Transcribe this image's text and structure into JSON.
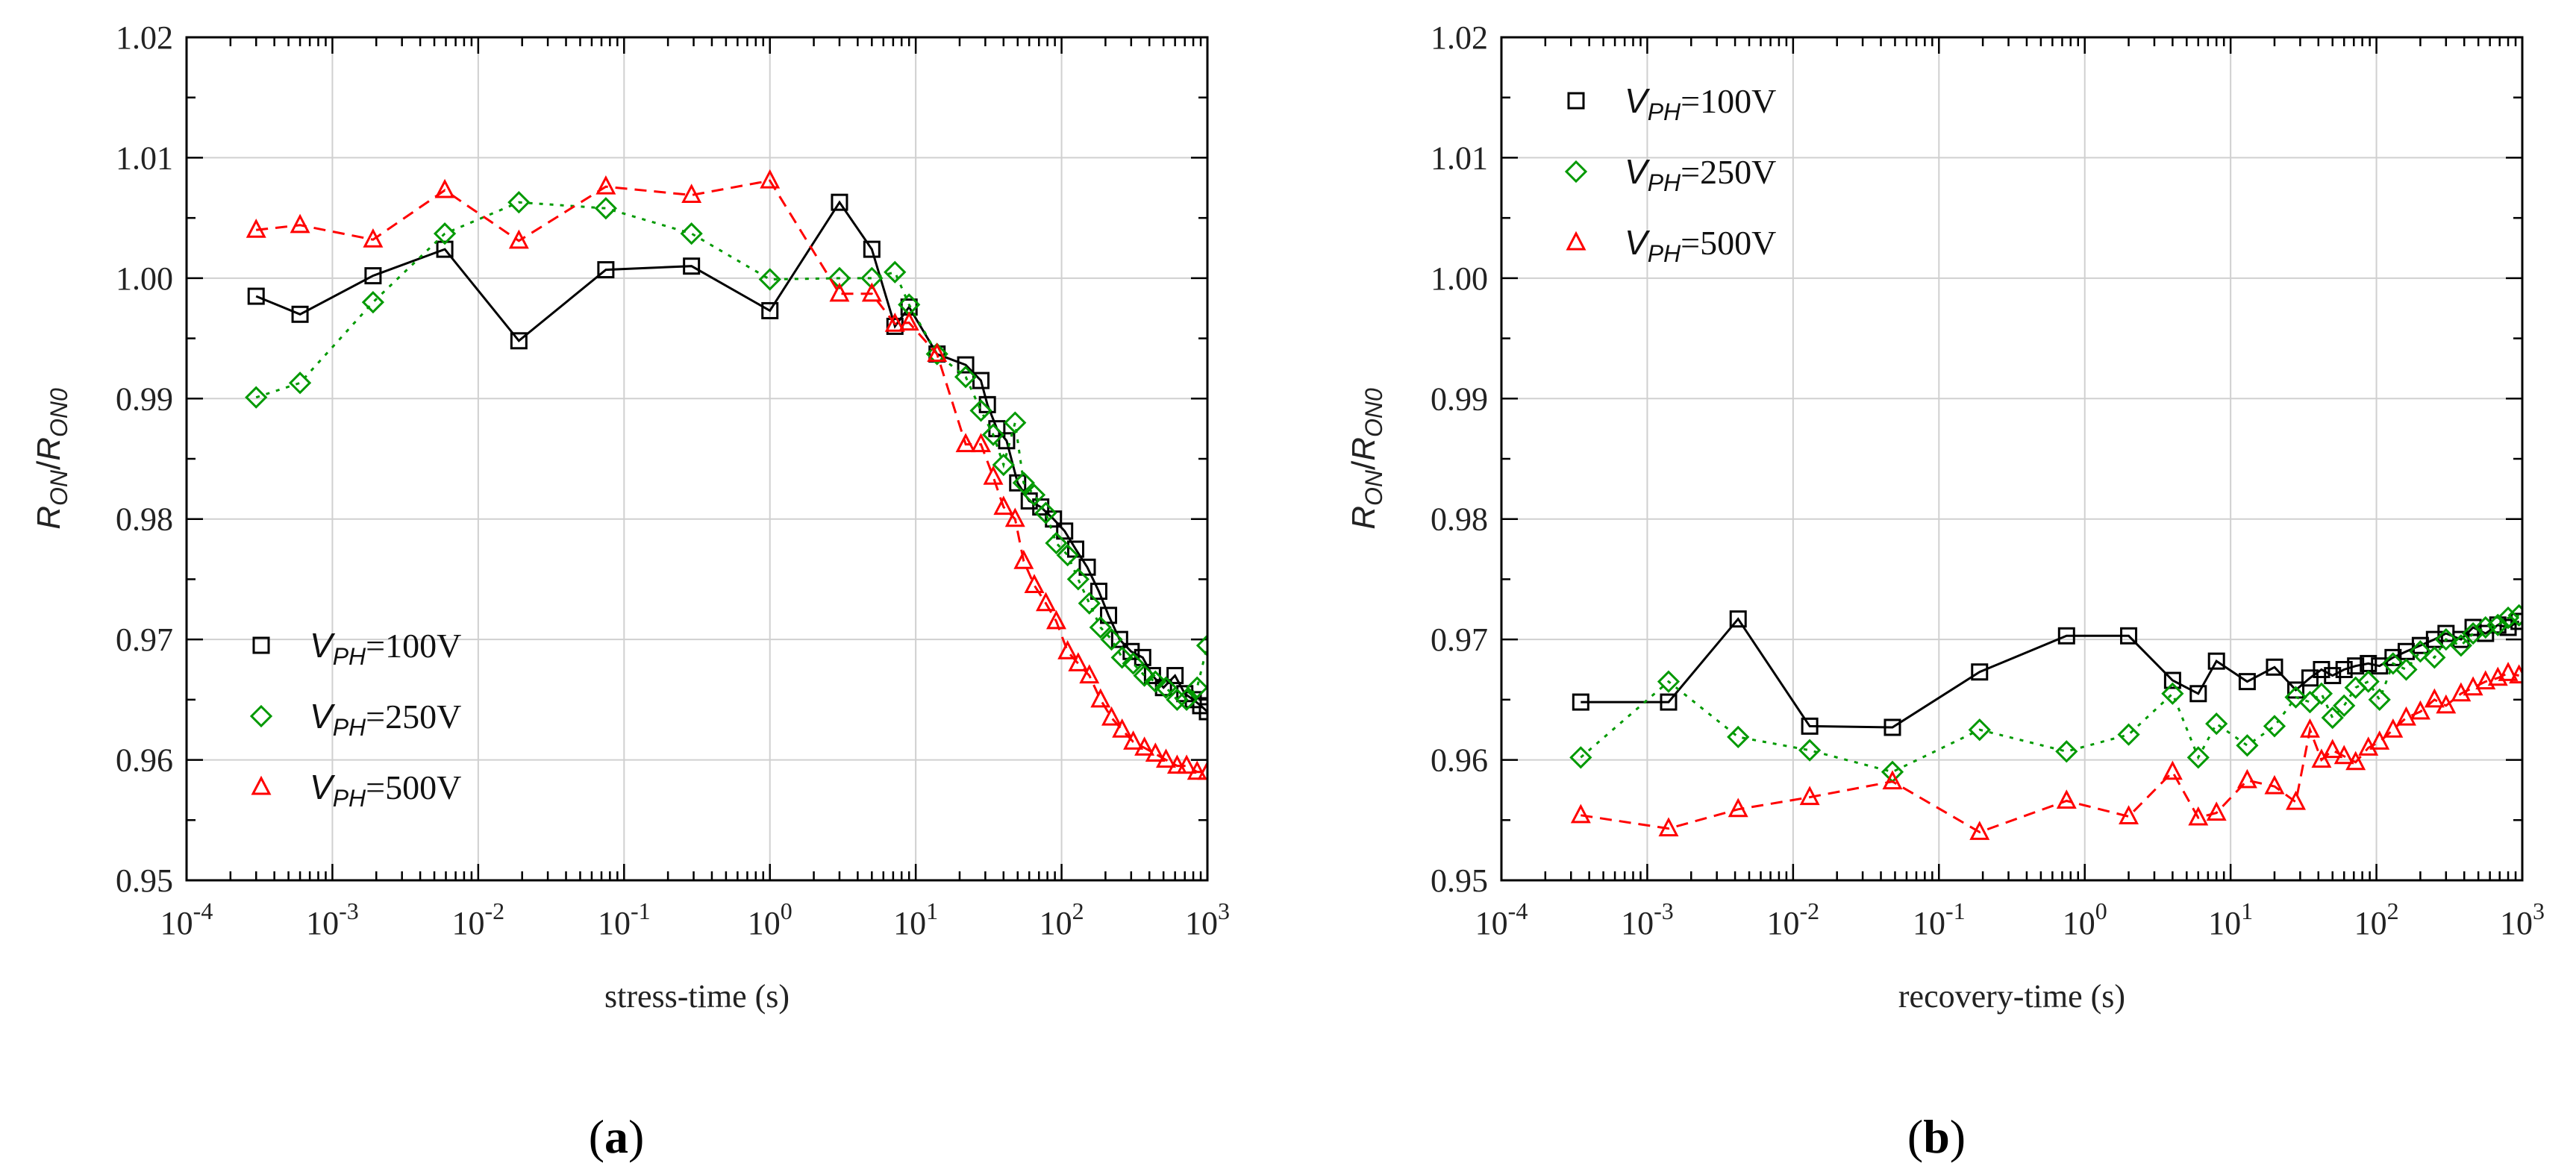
{
  "figure": {
    "panels": [
      "a",
      "b"
    ]
  },
  "chart_data": [
    {
      "panel_label": "(a)",
      "panel_letter": "a",
      "type": "scatter",
      "title": "",
      "xlabel": "stress-time (s)",
      "ylabel": "R_ON/R_ON0",
      "ylabel_parts": {
        "main": "R",
        "sub1": "ON",
        "slash": "/",
        "main2": "R",
        "sub2": "ON0"
      },
      "xscale": "log",
      "xlim": [
        0.0001,
        1000
      ],
      "ylim": [
        0.95,
        1.02
      ],
      "grid": true,
      "legend_position": "bottom-left",
      "x_tick_labels": [
        {
          "base": "10",
          "exp": "-4"
        },
        {
          "base": "10",
          "exp": "-3"
        },
        {
          "base": "10",
          "exp": "-2"
        },
        {
          "base": "10",
          "exp": "-1"
        },
        {
          "base": "10",
          "exp": "0"
        },
        {
          "base": "10",
          "exp": "1"
        },
        {
          "base": "10",
          "exp": "2"
        },
        {
          "base": "10",
          "exp": "3"
        }
      ],
      "y_tick_labels": [
        "0.95",
        "0.96",
        "0.97",
        "0.98",
        "0.99",
        "1.00",
        "1.01",
        "1.02"
      ],
      "series": [
        {
          "name": "VPH=100V",
          "legend": {
            "prefix": "V",
            "sub": "PH",
            "suffix": "=100V"
          },
          "marker": "square",
          "line": "solid",
          "color": "#000000",
          "x": [
            0.0003,
            0.0006,
            0.0019,
            0.0059,
            0.019,
            0.075,
            0.29,
            1.0,
            3.0,
            5.0,
            7.2,
            9.0,
            14,
            22,
            28,
            31,
            36,
            42,
            50,
            60,
            72,
            88,
            105,
            125,
            150,
            180,
            210,
            250,
            300,
            360,
            420,
            500,
            600,
            700,
            800,
            900,
            1000
          ],
          "y": [
            0.9985,
            0.997,
            1.0002,
            1.0024,
            0.9948,
            1.0007,
            1.001,
            0.9973,
            1.0063,
            1.0024,
            0.996,
            0.9976,
            0.9937,
            0.9928,
            0.9915,
            0.9895,
            0.9875,
            0.9865,
            0.983,
            0.9815,
            0.981,
            0.98,
            0.979,
            0.9775,
            0.976,
            0.974,
            0.972,
            0.97,
            0.969,
            0.9685,
            0.967,
            0.966,
            0.967,
            0.9655,
            0.965,
            0.9645,
            0.964
          ]
        },
        {
          "name": "VPH=250V",
          "legend": {
            "prefix": "V",
            "sub": "PH",
            "suffix": "=250V"
          },
          "marker": "diamond",
          "line": "dotted",
          "color": "#009900",
          "x": [
            0.0003,
            0.0006,
            0.0019,
            0.0059,
            0.019,
            0.075,
            0.29,
            1.0,
            3.0,
            5.0,
            7.2,
            9.0,
            14,
            22,
            28,
            34,
            40,
            48,
            55,
            65,
            78,
            92,
            110,
            130,
            155,
            185,
            220,
            260,
            310,
            370,
            440,
            520,
            620,
            720,
            850,
            1000
          ],
          "y": [
            0.9901,
            0.9913,
            0.998,
            1.0037,
            1.0063,
            1.0058,
            1.0037,
            0.9999,
            1.0,
            1.0,
            1.0005,
            0.9978,
            0.9937,
            0.9918,
            0.989,
            0.987,
            0.9845,
            0.988,
            0.983,
            0.982,
            0.9805,
            0.978,
            0.977,
            0.975,
            0.973,
            0.971,
            0.97,
            0.9685,
            0.968,
            0.967,
            0.9665,
            0.966,
            0.965,
            0.965,
            0.966,
            0.9695
          ]
        },
        {
          "name": "VPH=500V",
          "legend": {
            "prefix": "V",
            "sub": "PH",
            "suffix": "=500V"
          },
          "marker": "triangle",
          "line": "dashed",
          "color": "#ff0000",
          "x": [
            0.0003,
            0.0006,
            0.0019,
            0.0059,
            0.019,
            0.075,
            0.29,
            1.0,
            3.0,
            5.0,
            7.2,
            9.0,
            14,
            22,
            28,
            34,
            40,
            48,
            55,
            65,
            78,
            92,
            110,
            130,
            155,
            185,
            220,
            260,
            310,
            370,
            440,
            520,
            620,
            720,
            850,
            1000
          ],
          "y": [
            1.004,
            1.0044,
            1.0032,
            1.0073,
            1.0031,
            1.0076,
            1.0069,
            1.0081,
            0.9987,
            0.9987,
            0.9962,
            0.9963,
            0.9937,
            0.9862,
            0.9862,
            0.9835,
            0.981,
            0.98,
            0.9765,
            0.9745,
            0.973,
            0.9715,
            0.969,
            0.968,
            0.967,
            0.965,
            0.9635,
            0.9625,
            0.9615,
            0.961,
            0.9605,
            0.96,
            0.9595,
            0.9595,
            0.959,
            0.959
          ]
        }
      ]
    },
    {
      "panel_label": "(b)",
      "panel_letter": "b",
      "type": "scatter",
      "title": "",
      "xlabel": "recovery-time (s)",
      "ylabel": "R_ON/R_ON0",
      "ylabel_parts": {
        "main": "R",
        "sub1": "ON",
        "slash": "/",
        "main2": "R",
        "sub2": "ON0"
      },
      "xscale": "log",
      "xlim": [
        0.0001,
        1000
      ],
      "ylim": [
        0.95,
        1.02
      ],
      "grid": true,
      "legend_position": "top-left",
      "x_tick_labels": [
        {
          "base": "10",
          "exp": "-4"
        },
        {
          "base": "10",
          "exp": "-3"
        },
        {
          "base": "10",
          "exp": "-2"
        },
        {
          "base": "10",
          "exp": "-1"
        },
        {
          "base": "10",
          "exp": "0"
        },
        {
          "base": "10",
          "exp": "1"
        },
        {
          "base": "10",
          "exp": "2"
        },
        {
          "base": "10",
          "exp": "3"
        }
      ],
      "y_tick_labels": [
        "0.95",
        "0.96",
        "0.97",
        "0.98",
        "0.99",
        "1.00",
        "1.01",
        "1.02"
      ],
      "series": [
        {
          "name": "VPH=100V",
          "legend": {
            "prefix": "V",
            "sub": "PH",
            "suffix": "=100V"
          },
          "marker": "square",
          "line": "solid",
          "color": "#000000",
          "x": [
            0.00035,
            0.0014,
            0.0042,
            0.013,
            0.048,
            0.19,
            0.75,
            2.0,
            4.0,
            6.0,
            8.0,
            13,
            20,
            28,
            35,
            42,
            50,
            60,
            72,
            88,
            105,
            130,
            160,
            200,
            250,
            300,
            380,
            460,
            560,
            680,
            800,
            950
          ],
          "y": [
            0.9648,
            0.9648,
            0.9717,
            0.9628,
            0.9627,
            0.9673,
            0.9703,
            0.9703,
            0.9666,
            0.9655,
            0.9682,
            0.9665,
            0.9677,
            0.9658,
            0.9668,
            0.9675,
            0.967,
            0.9675,
            0.9678,
            0.968,
            0.9678,
            0.9685,
            0.969,
            0.9695,
            0.97,
            0.9705,
            0.97,
            0.971,
            0.9705,
            0.9712,
            0.971,
            0.9715
          ]
        },
        {
          "name": "VPH=250V",
          "legend": {
            "prefix": "V",
            "sub": "PH",
            "suffix": "=250V"
          },
          "marker": "diamond",
          "line": "dotted",
          "color": "#009900",
          "x": [
            0.00035,
            0.0014,
            0.0042,
            0.013,
            0.048,
            0.19,
            0.75,
            2.0,
            4.0,
            6.0,
            8.0,
            13,
            20,
            28,
            35,
            42,
            50,
            60,
            72,
            88,
            105,
            130,
            160,
            200,
            250,
            300,
            380,
            460,
            560,
            680,
            800,
            950
          ],
          "y": [
            0.9602,
            0.9665,
            0.9619,
            0.9608,
            0.959,
            0.9625,
            0.9607,
            0.9621,
            0.9655,
            0.9602,
            0.963,
            0.9612,
            0.9628,
            0.9652,
            0.9648,
            0.9655,
            0.9635,
            0.9645,
            0.966,
            0.9665,
            0.965,
            0.968,
            0.9675,
            0.969,
            0.9685,
            0.97,
            0.9695,
            0.9705,
            0.971,
            0.9712,
            0.9718,
            0.972
          ]
        },
        {
          "name": "VPH=500V",
          "legend": {
            "prefix": "V",
            "sub": "PH",
            "suffix": "=500V"
          },
          "marker": "triangle",
          "line": "dashed",
          "color": "#ff0000",
          "x": [
            0.00035,
            0.0014,
            0.0042,
            0.013,
            0.048,
            0.19,
            0.75,
            2.0,
            4.0,
            6.0,
            8.0,
            13,
            20,
            28,
            35,
            42,
            50,
            60,
            72,
            88,
            105,
            130,
            160,
            200,
            250,
            300,
            380,
            460,
            560,
            680,
            800,
            950
          ],
          "y": [
            0.9554,
            0.9543,
            0.9559,
            0.9569,
            0.9582,
            0.954,
            0.9566,
            0.9553,
            0.959,
            0.9552,
            0.9556,
            0.9583,
            0.9578,
            0.9565,
            0.9625,
            0.96,
            0.9608,
            0.9603,
            0.9598,
            0.961,
            0.9615,
            0.9625,
            0.9635,
            0.964,
            0.965,
            0.9645,
            0.9655,
            0.966,
            0.9665,
            0.9668,
            0.9672,
            0.967
          ]
        }
      ]
    }
  ]
}
